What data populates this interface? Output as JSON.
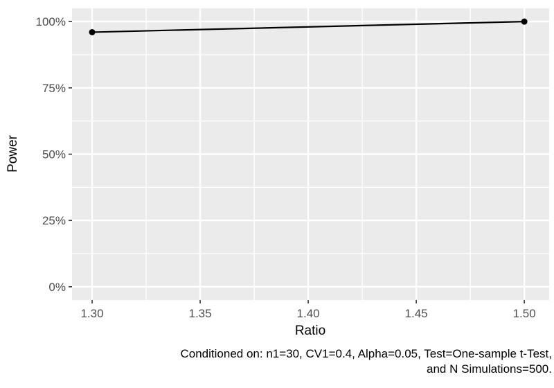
{
  "chart_data": {
    "type": "line",
    "x": [
      1.3,
      1.5
    ],
    "series": [
      {
        "name": "Power",
        "values": [
          0.96,
          1.0
        ]
      }
    ],
    "title": "",
    "xlabel": "Ratio",
    "ylabel": "Power",
    "x_ticks": {
      "values": [
        1.3,
        1.35,
        1.4,
        1.45,
        1.5
      ],
      "labels": [
        "1.30",
        "1.35",
        "1.40",
        "1.45",
        "1.50"
      ]
    },
    "y_ticks": {
      "values": [
        0,
        0.25,
        0.5,
        0.75,
        1.0
      ],
      "labels": [
        "0%",
        "25%",
        "50%",
        "75%",
        "100%"
      ]
    },
    "x_minor": [
      1.325,
      1.375,
      1.425,
      1.475
    ],
    "y_minor": [
      0.125,
      0.375,
      0.625,
      0.875
    ],
    "xlim": [
      1.2907,
      1.5115
    ],
    "ylim": [
      -0.05,
      1.05
    ],
    "grid": "major+minor",
    "legend": "none"
  },
  "caption": {
    "line1": "Conditioned on: n1=30, CV1=0.4, Alpha=0.05, Test=One-sample t-Test,",
    "line2": "and N Simulations=500."
  },
  "colors": {
    "page_bg": "#FFFFFF",
    "panel_bg": "#EBEBEB",
    "grid_major": "#FFFFFF",
    "grid_minor": "#FFFFFF",
    "tick_mark": "#333333",
    "tick_label": "#4D4D4D",
    "axis_title": "#000000",
    "line": "#000000",
    "point": "#000000",
    "caption": "#000000"
  }
}
